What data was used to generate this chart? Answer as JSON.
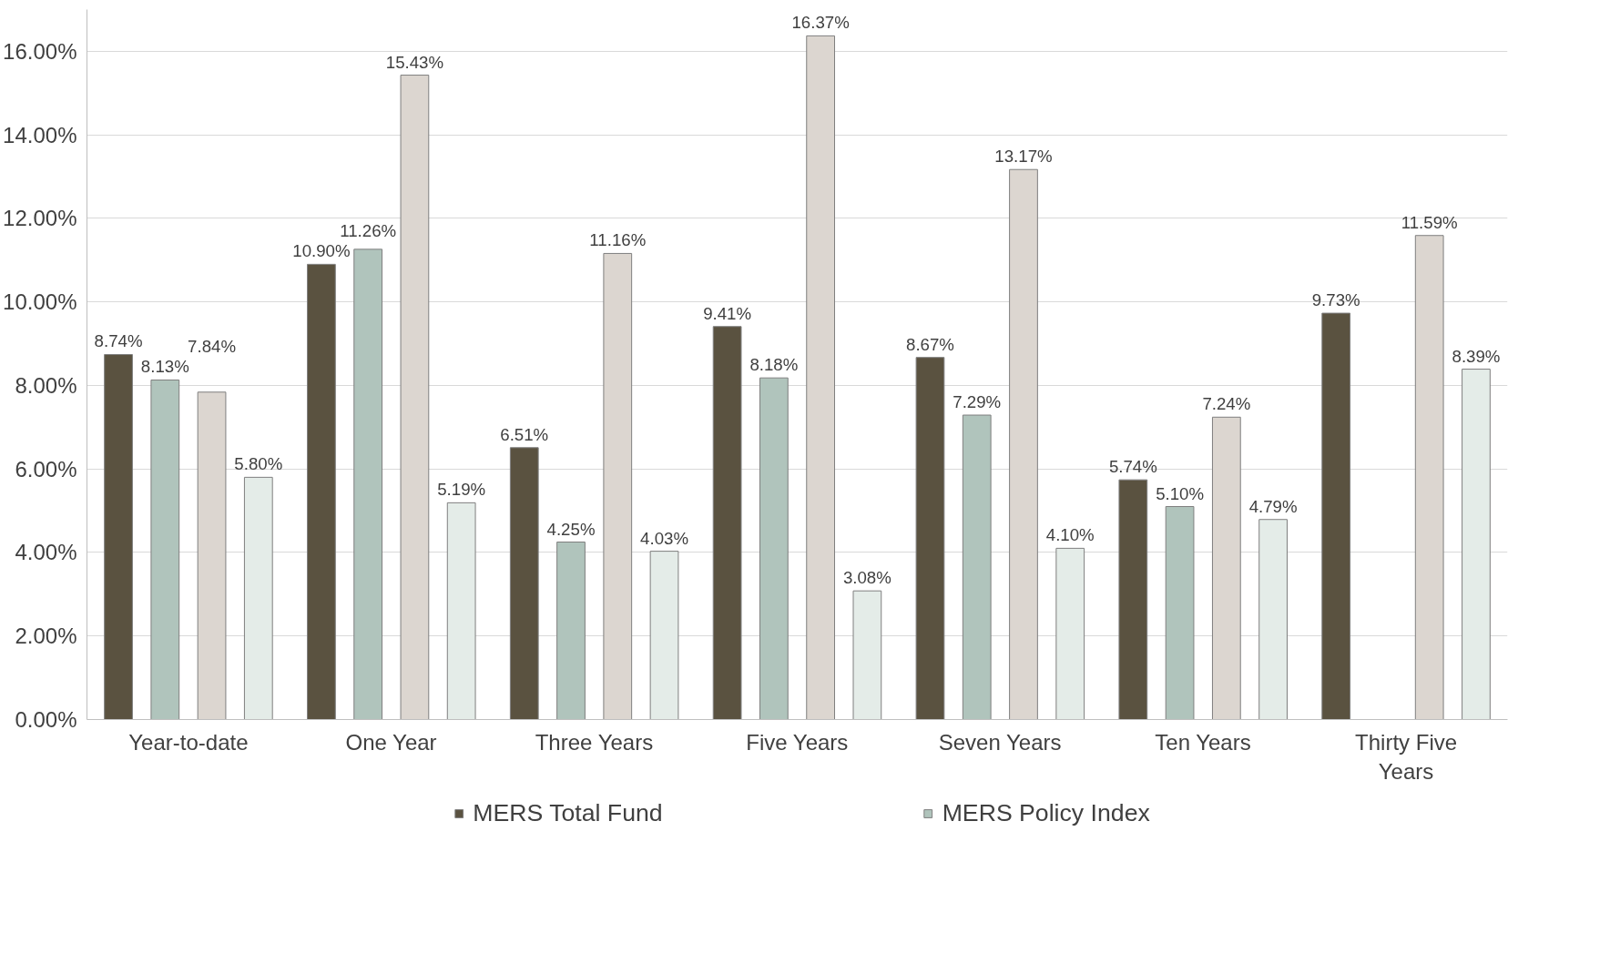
{
  "chart_data": {
    "type": "bar",
    "categories": [
      "Year-to-date",
      "One Year",
      "Three Years",
      "Five Years",
      "Seven Years",
      "Ten Years",
      "Thirty Five Years"
    ],
    "series": [
      {
        "name": "MERS Total Fund",
        "color": "#5a5240",
        "values": [
          8.74,
          10.9,
          6.51,
          9.41,
          8.67,
          5.74,
          9.73
        ],
        "value_labels": [
          "8.74%",
          "10.90%",
          "6.51%",
          "9.41%",
          "8.67%",
          "5.74%",
          "9.73%"
        ]
      },
      {
        "name": "MERS Policy Index",
        "color": "#b0c4bc",
        "values": [
          8.13,
          11.26,
          4.25,
          8.18,
          7.29,
          5.1,
          null
        ],
        "value_labels": [
          "8.13%",
          "11.26%",
          "4.25%",
          "8.18%",
          "7.29%",
          "5.10%",
          null
        ]
      },
      {
        "color": "#dcd6d0",
        "values": [
          7.84,
          15.43,
          11.16,
          16.37,
          13.17,
          7.24,
          11.59
        ],
        "value_labels": [
          "7.84%",
          "15.43%",
          "11.16%",
          "16.37%",
          "13.17%",
          "7.24%",
          "11.59%"
        ]
      },
      {
        "color": "#e4ece8",
        "values": [
          5.8,
          5.19,
          4.03,
          3.08,
          4.1,
          4.79,
          8.39
        ],
        "value_labels": [
          "5.80%",
          "5.19%",
          "4.03%",
          "3.08%",
          "4.10%",
          "4.79%",
          "8.39%"
        ]
      }
    ],
    "ylim": [
      0,
      17
    ],
    "yticks": [
      {
        "value": 0,
        "label": "0.00%"
      },
      {
        "value": 2,
        "label": "2.00%"
      },
      {
        "value": 4,
        "label": "4.00%"
      },
      {
        "value": 6,
        "label": "6.00%"
      },
      {
        "value": 8,
        "label": "8.00%"
      },
      {
        "value": 10,
        "label": "10.00%"
      },
      {
        "value": 12,
        "label": "12.00%"
      },
      {
        "value": 14,
        "label": "14.00%"
      },
      {
        "value": 16,
        "label": "16.00%"
      }
    ],
    "grid": "y",
    "legend": "bottom"
  }
}
